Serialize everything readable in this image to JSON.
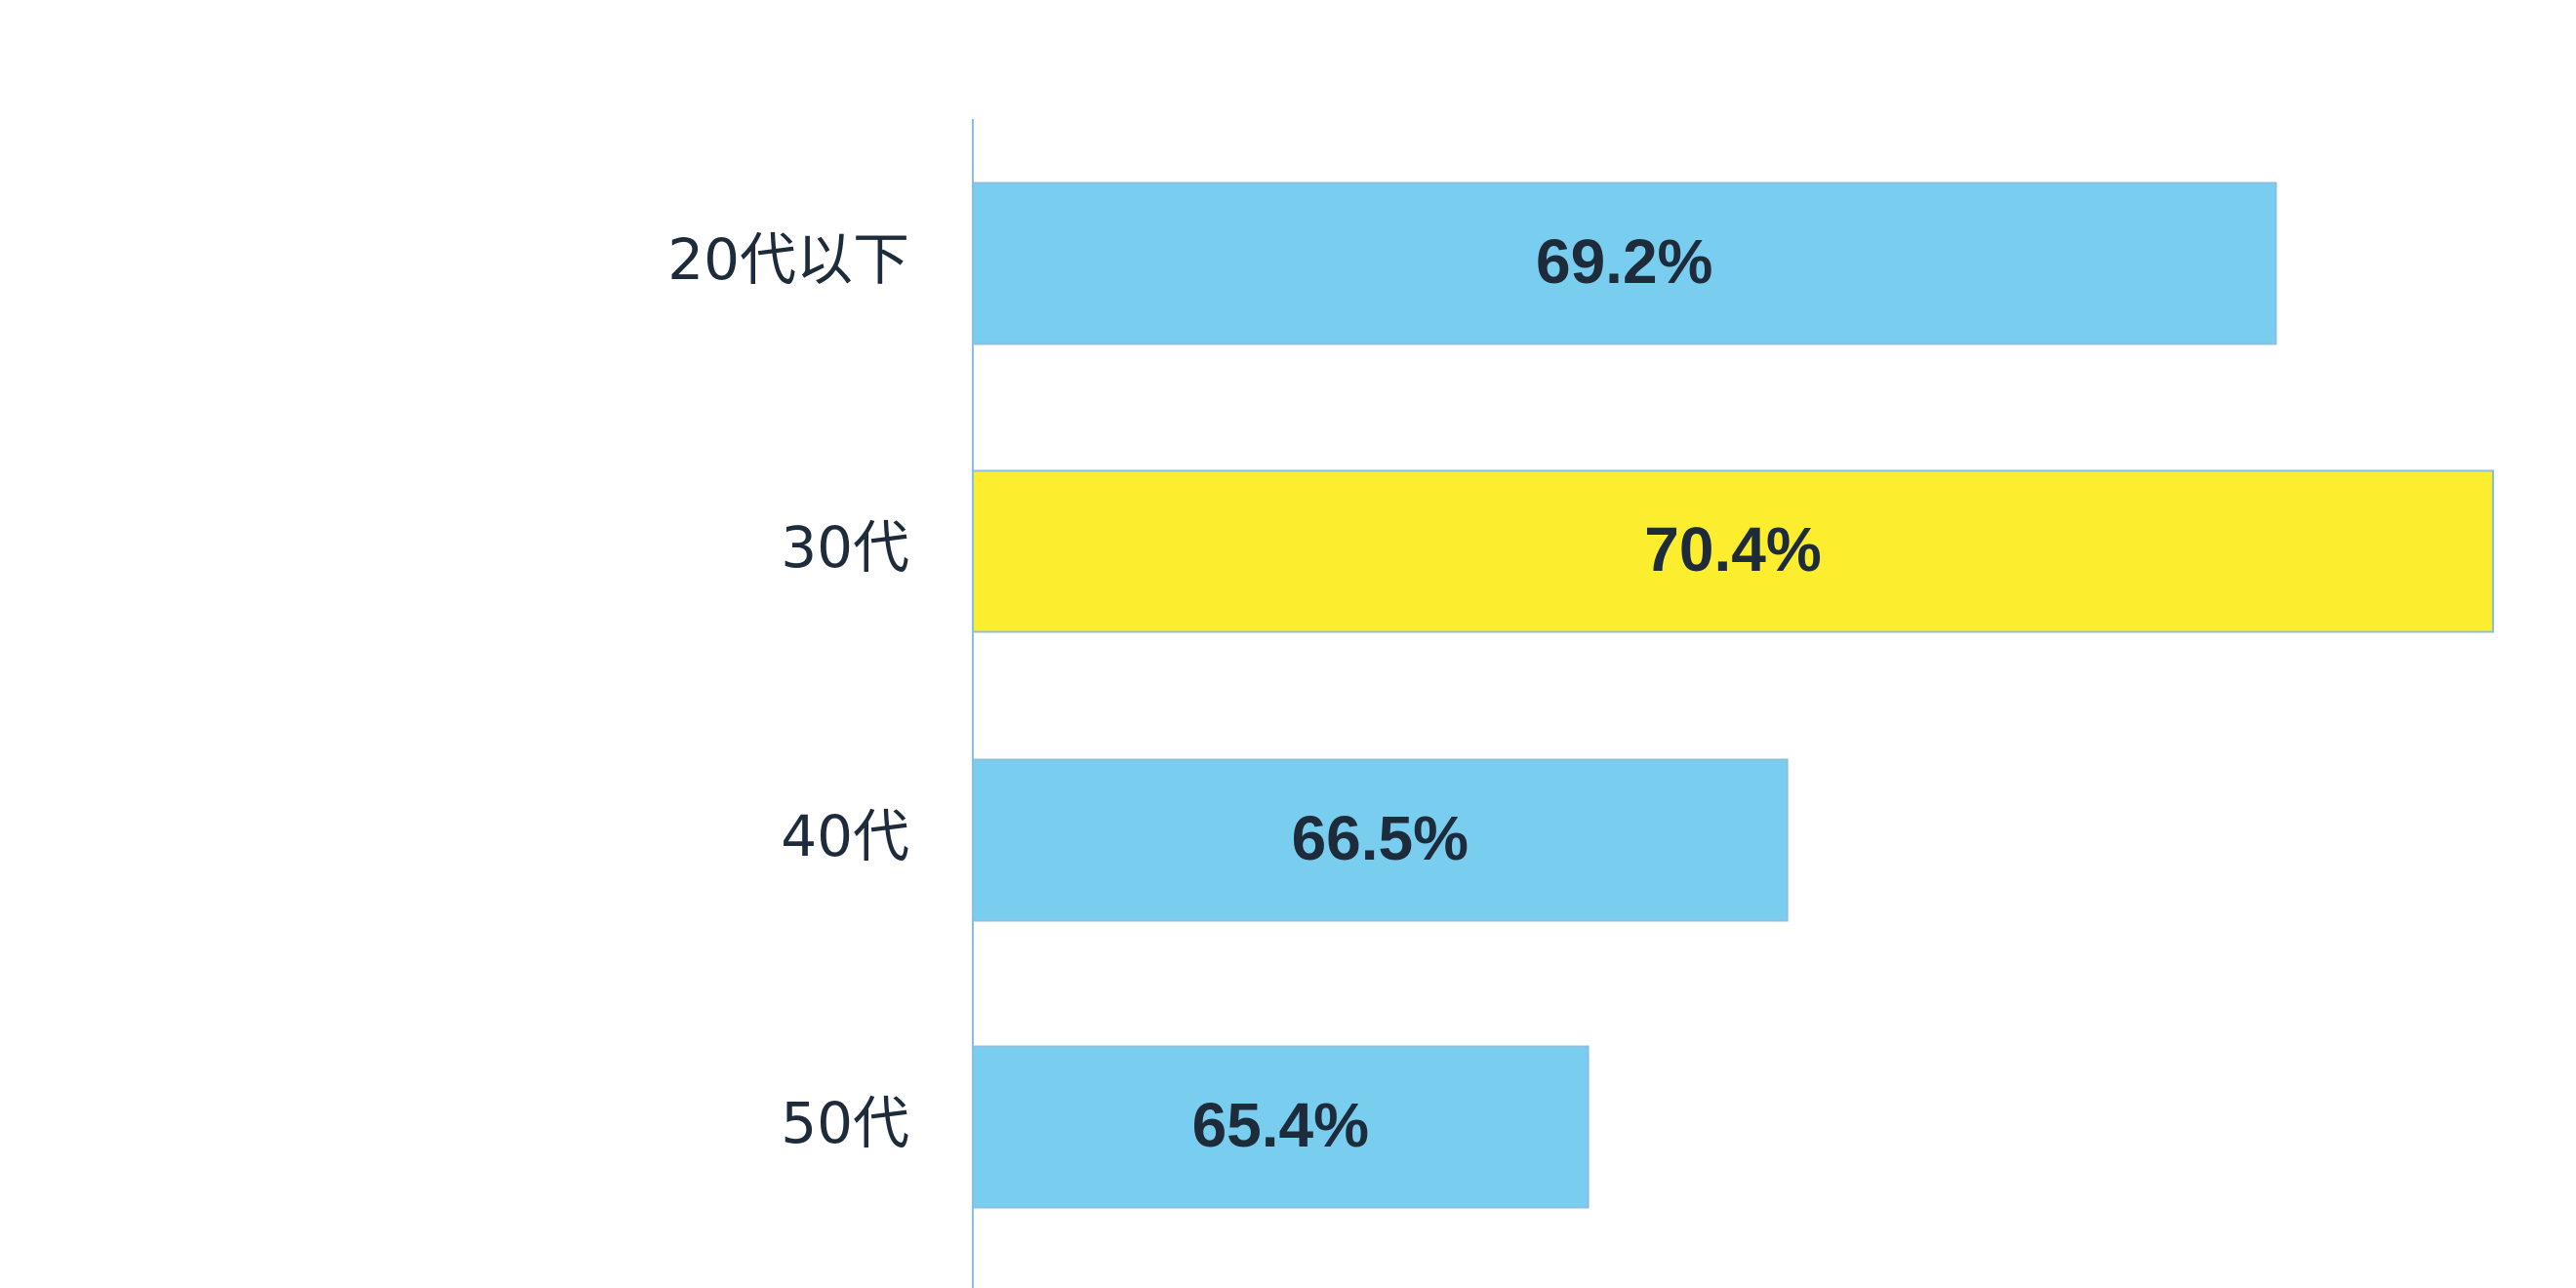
{
  "chart_data": {
    "type": "barh",
    "categories": [
      "20代以下",
      "30代",
      "40代",
      "50代"
    ],
    "values": [
      69.2,
      70.4,
      66.5,
      65.4
    ],
    "value_labels": [
      "69.2%",
      "70.4%",
      "66.5%",
      "65.4%"
    ],
    "colors": [
      "#79cdef",
      "#fded2f",
      "#79cdef",
      "#79cdef"
    ],
    "xlim": [
      62,
      70.4
    ]
  }
}
